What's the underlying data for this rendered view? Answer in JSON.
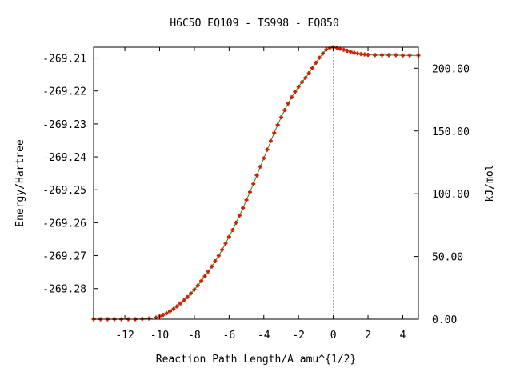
{
  "chart_data": {
    "type": "scatter",
    "title": "H6C5O   EQ109 - TS998 - EQ850",
    "xlabel": "Reaction Path Length/A amu^{1/2}",
    "ylabel": "Energy/Hartree",
    "y2label": "kJ/mol",
    "xlim": [
      -13.8,
      4.9
    ],
    "ylim": [
      -269.2893,
      -269.2067
    ],
    "y2lim": [
      0.0,
      216.8
    ],
    "x_ticks": [
      -12,
      -10,
      -8,
      -6,
      -4,
      -2,
      0,
      2,
      4
    ],
    "x_tick_labels": [
      "-12",
      "-10",
      "-8",
      "-6",
      "-4",
      "-2",
      "0",
      "2",
      "4"
    ],
    "y_ticks": [
      -269.28,
      -269.27,
      -269.26,
      -269.25,
      -269.24,
      -269.23,
      -269.22,
      -269.21
    ],
    "y_tick_labels": [
      "-269.28",
      "-269.27",
      "-269.26",
      "-269.25",
      "-269.24",
      "-269.23",
      "-269.22",
      "-269.21"
    ],
    "y2_ticks": [
      0,
      50,
      100,
      150,
      200
    ],
    "y2_tick_labels": [
      "0.00",
      "50.00",
      "100.00",
      "150.00",
      "200.00"
    ],
    "ts_marker_x": 0.0,
    "marker_color": "#cc2200",
    "line_color": "#228822",
    "series": [
      {
        "x": [
          -13.8,
          -13.4,
          -13.0,
          -12.6,
          -12.2,
          -11.8,
          -11.4,
          -11.0,
          -10.6,
          -10.2,
          -10.0,
          -9.8,
          -9.6,
          -9.4,
          -9.2,
          -9.0,
          -8.8,
          -8.6,
          -8.4,
          -8.2,
          -8.0,
          -7.8,
          -7.6,
          -7.4,
          -7.2,
          -7.0,
          -6.8,
          -6.6,
          -6.4,
          -6.2,
          -6.0,
          -5.8,
          -5.6,
          -5.4,
          -5.2,
          -5.0,
          -4.8,
          -4.6,
          -4.4,
          -4.2,
          -4.0,
          -3.8,
          -3.6,
          -3.4,
          -3.2,
          -3.0,
          -2.8,
          -2.6,
          -2.4,
          -2.2,
          -2.0,
          -1.8,
          -1.6,
          -1.4,
          -1.2,
          -1.0,
          -0.8,
          -0.6,
          -0.4,
          -0.2,
          0.0,
          0.2,
          0.4,
          0.6,
          0.8,
          1.0,
          1.2,
          1.4,
          1.6,
          1.8,
          2.0,
          2.4,
          2.8,
          3.2,
          3.6,
          4.0,
          4.4,
          4.9
        ],
        "y": [
          -269.2893,
          -269.2893,
          -269.2893,
          -269.2893,
          -269.2893,
          -269.2893,
          -269.2893,
          -269.2892,
          -269.2891,
          -269.2888,
          -269.2884,
          -269.288,
          -269.2875,
          -269.2869,
          -269.2862,
          -269.2854,
          -269.2845,
          -269.2836,
          -269.2826,
          -269.2815,
          -269.2803,
          -269.2791,
          -269.2777,
          -269.2763,
          -269.2748,
          -269.2733,
          -269.2717,
          -269.27,
          -269.2682,
          -269.2663,
          -269.2643,
          -269.2622,
          -269.26,
          -269.2578,
          -269.2555,
          -269.2531,
          -269.2507,
          -269.2482,
          -269.2456,
          -269.243,
          -269.2404,
          -269.2378,
          -269.2352,
          -269.2327,
          -269.2303,
          -269.228,
          -269.2258,
          -269.2238,
          -269.2219,
          -269.2202,
          -269.2187,
          -269.2173,
          -269.216,
          -269.2146,
          -269.213,
          -269.2114,
          -269.2099,
          -269.2086,
          -269.2074,
          -269.2069,
          -269.2067,
          -269.2069,
          -269.2072,
          -269.2075,
          -269.2078,
          -269.2081,
          -269.2084,
          -269.2086,
          -269.2088,
          -269.2089,
          -269.209,
          -269.2091,
          -269.2091,
          -269.2091,
          -269.2091,
          -269.2092,
          -269.2092,
          -269.2092
        ]
      }
    ]
  }
}
